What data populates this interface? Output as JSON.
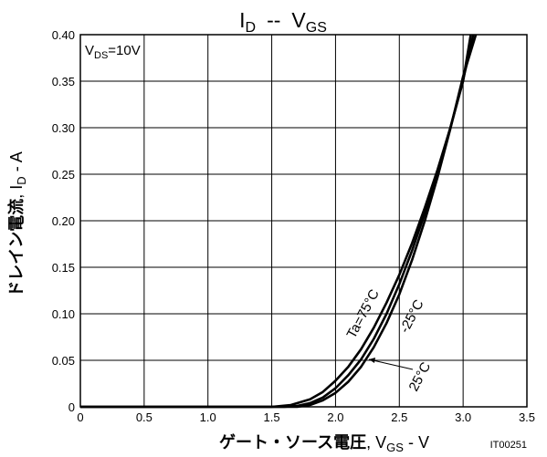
{
  "chart_data": {
    "type": "line",
    "title": {
      "main": "I",
      "main_sub": "D",
      "sep": "--",
      "main2": "V",
      "main2_sub": "GS"
    },
    "condition": {
      "prefix": "V",
      "sub": "DS",
      "suffix": "=10V"
    },
    "xlabel": {
      "bold": "ゲート・ソース電圧",
      "rest": ", V",
      "sub": "GS",
      "unit": " - V"
    },
    "ylabel": {
      "bold": "ドレイン電流",
      "rest": ", I",
      "sub": "D",
      "unit": " - A"
    },
    "xlim": [
      0,
      3.5
    ],
    "ylim": [
      0,
      0.4
    ],
    "xticks": [
      "0",
      "0.5",
      "1.0",
      "1.5",
      "2.0",
      "2.5",
      "3.0",
      "3.5"
    ],
    "yticks": [
      "0",
      "0.05",
      "0.10",
      "0.15",
      "0.20",
      "0.25",
      "0.30",
      "0.35",
      "0.40"
    ],
    "grid": true,
    "figure_code": "IT00251",
    "series": [
      {
        "name": "Ta=75°C",
        "x": [
          0,
          1.5,
          1.65,
          1.8,
          1.9,
          2.0,
          2.1,
          2.2,
          2.3,
          2.4,
          2.5,
          2.6,
          2.7,
          2.8,
          2.9,
          3.0,
          3.06
        ],
        "y": [
          0,
          0,
          0.002,
          0.008,
          0.016,
          0.028,
          0.043,
          0.062,
          0.085,
          0.112,
          0.142,
          0.176,
          0.214,
          0.255,
          0.3,
          0.35,
          0.4
        ]
      },
      {
        "name": "-25°C",
        "x": [
          0,
          1.6,
          1.7,
          1.8,
          1.9,
          2.0,
          2.1,
          2.2,
          2.3,
          2.4,
          2.5,
          2.6,
          2.7,
          2.8,
          2.9,
          3.0,
          3.08
        ],
        "y": [
          0,
          0,
          0.001,
          0.004,
          0.01,
          0.02,
          0.034,
          0.051,
          0.073,
          0.1,
          0.132,
          0.168,
          0.208,
          0.252,
          0.3,
          0.351,
          0.4
        ]
      },
      {
        "name": "25°C",
        "x": [
          0,
          1.7,
          1.8,
          1.9,
          2.0,
          2.1,
          2.2,
          2.3,
          2.4,
          2.5,
          2.6,
          2.7,
          2.8,
          2.9,
          3.0,
          3.1
        ],
        "y": [
          0,
          0,
          0.002,
          0.007,
          0.015,
          0.027,
          0.043,
          0.064,
          0.09,
          0.121,
          0.158,
          0.2,
          0.247,
          0.299,
          0.355,
          0.4
        ]
      }
    ]
  }
}
